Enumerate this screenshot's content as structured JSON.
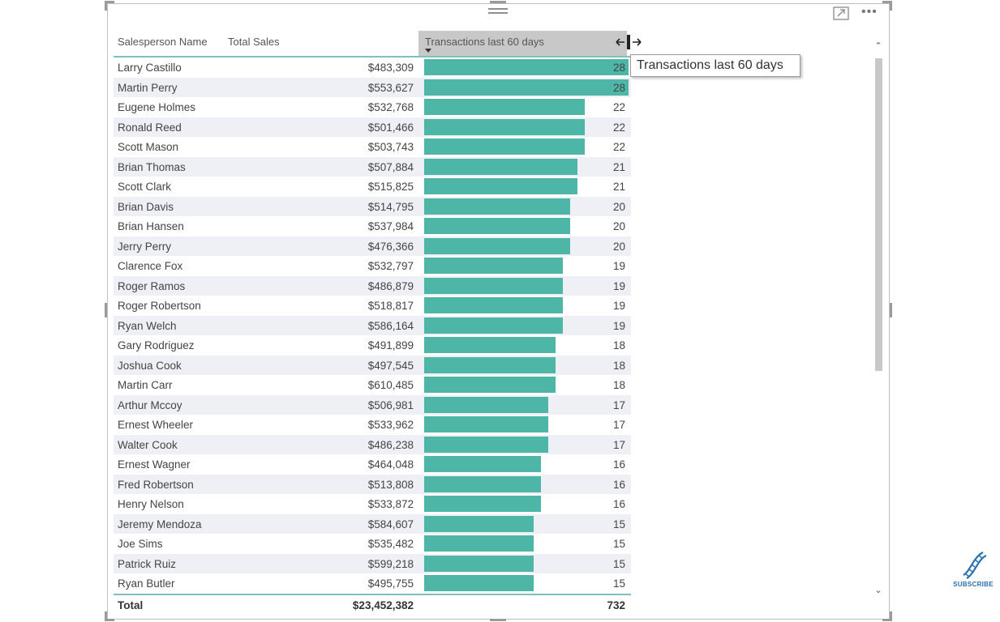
{
  "table": {
    "columns": {
      "name": "Salesperson Name",
      "sales": "Total Sales",
      "transactions": "Transactions last 60 days"
    },
    "bar_color": "#4db6a6",
    "bar_max": 28,
    "rows": [
      {
        "name": "Larry Castillo",
        "sales": "$483,309",
        "tx": "28",
        "txv": 28
      },
      {
        "name": "Martin Perry",
        "sales": "$553,627",
        "tx": "28",
        "txv": 28
      },
      {
        "name": "Eugene Holmes",
        "sales": "$532,768",
        "tx": "22",
        "txv": 22
      },
      {
        "name": "Ronald Reed",
        "sales": "$501,466",
        "tx": "22",
        "txv": 22
      },
      {
        "name": "Scott Mason",
        "sales": "$503,743",
        "tx": "22",
        "txv": 22
      },
      {
        "name": "Brian Thomas",
        "sales": "$507,884",
        "tx": "21",
        "txv": 21
      },
      {
        "name": "Scott Clark",
        "sales": "$515,825",
        "tx": "21",
        "txv": 21
      },
      {
        "name": "Brian Davis",
        "sales": "$514,795",
        "tx": "20",
        "txv": 20
      },
      {
        "name": "Brian Hansen",
        "sales": "$537,984",
        "tx": "20",
        "txv": 20
      },
      {
        "name": "Jerry Perry",
        "sales": "$476,366",
        "tx": "20",
        "txv": 20
      },
      {
        "name": "Clarence Fox",
        "sales": "$532,797",
        "tx": "19",
        "txv": 19
      },
      {
        "name": "Roger Ramos",
        "sales": "$486,879",
        "tx": "19",
        "txv": 19
      },
      {
        "name": "Roger Robertson",
        "sales": "$518,817",
        "tx": "19",
        "txv": 19
      },
      {
        "name": "Ryan Welch",
        "sales": "$586,164",
        "tx": "19",
        "txv": 19
      },
      {
        "name": "Gary Rodriguez",
        "sales": "$491,899",
        "tx": "18",
        "txv": 18
      },
      {
        "name": "Joshua Cook",
        "sales": "$497,545",
        "tx": "18",
        "txv": 18
      },
      {
        "name": "Martin Carr",
        "sales": "$610,485",
        "tx": "18",
        "txv": 18
      },
      {
        "name": "Arthur Mccoy",
        "sales": "$506,981",
        "tx": "17",
        "txv": 17
      },
      {
        "name": "Ernest Wheeler",
        "sales": "$533,962",
        "tx": "17",
        "txv": 17
      },
      {
        "name": "Walter Cook",
        "sales": "$486,238",
        "tx": "17",
        "txv": 17
      },
      {
        "name": "Ernest Wagner",
        "sales": "$464,048",
        "tx": "16",
        "txv": 16
      },
      {
        "name": "Fred Robertson",
        "sales": "$513,808",
        "tx": "16",
        "txv": 16
      },
      {
        "name": "Henry Nelson",
        "sales": "$533,872",
        "tx": "16",
        "txv": 16
      },
      {
        "name": "Jeremy Mendoza",
        "sales": "$584,607",
        "tx": "15",
        "txv": 15
      },
      {
        "name": "Joe Sims",
        "sales": "$535,482",
        "tx": "15",
        "txv": 15
      },
      {
        "name": "Patrick Ruiz",
        "sales": "$599,218",
        "tx": "15",
        "txv": 15
      },
      {
        "name": "Ryan Butler",
        "sales": "$495,755",
        "tx": "15",
        "txv": 15
      }
    ],
    "total": {
      "label": "Total",
      "sales": "$23,452,382",
      "tx": "732"
    }
  },
  "tooltip": {
    "text": "Transactions last 60 days"
  },
  "icons": {
    "drag": "drag-grip-icon",
    "focus": "focus-mode-icon",
    "more": "more-options-icon",
    "resize": "column-resize-cursor-icon",
    "subscribe": "dna-icon"
  },
  "overlay": {
    "subscribe": "SUBSCRIBE"
  }
}
